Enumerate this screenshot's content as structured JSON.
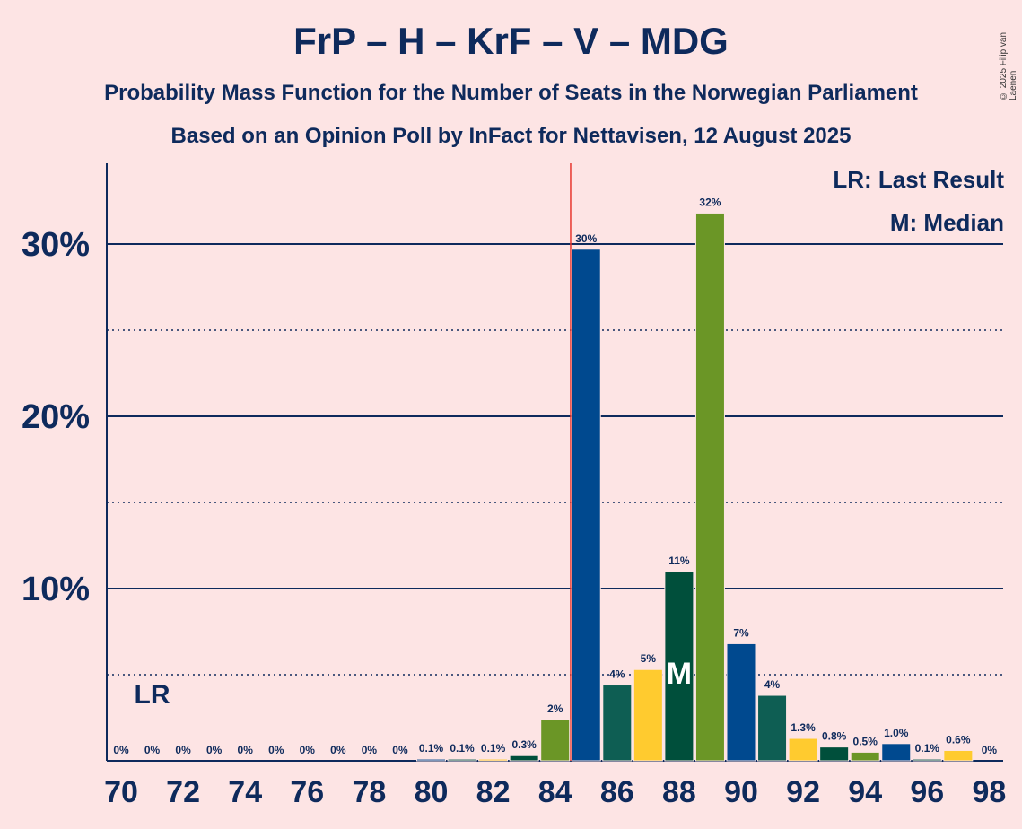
{
  "header": {
    "title": "FrP – H – KrF – V – MDG",
    "subtitle1": "Probability Mass Function for the Number of Seats in the Norwegian Parliament",
    "subtitle2": "Based on an Opinion Poll by InFact for Nettavisen, 12 August 2025",
    "copyright": "© 2025 Filip van Laenen"
  },
  "legend": {
    "lr": "LR: Last Result",
    "median": "M: Median"
  },
  "chart_data": {
    "type": "bar",
    "x": [
      70,
      71,
      72,
      73,
      74,
      75,
      76,
      77,
      78,
      79,
      80,
      81,
      82,
      83,
      84,
      85,
      86,
      87,
      88,
      89,
      90,
      91,
      92,
      93,
      94,
      95,
      96,
      97,
      98
    ],
    "values": [
      0,
      0,
      0,
      0,
      0,
      0,
      0,
      0,
      0,
      0,
      0.1,
      0.1,
      0.1,
      0.3,
      2.4,
      29.7,
      4.4,
      5.3,
      11.0,
      31.8,
      6.8,
      3.8,
      1.3,
      0.8,
      0.5,
      1.0,
      0.1,
      0.6,
      0
    ],
    "labels": [
      "0%",
      "0%",
      "0%",
      "0%",
      "0%",
      "0%",
      "0%",
      "0%",
      "0%",
      "0%",
      "0.1%",
      "0.1%",
      "0.1%",
      "0.3%",
      "2%",
      "30%",
      "4%",
      "5%",
      "11%",
      "32%",
      "7%",
      "4%",
      "1.3%",
      "0.8%",
      "0.5%",
      "1.0%",
      "0.1%",
      "0.6%",
      "0%"
    ],
    "bar_colors": [
      "#00498f",
      "#0e5e53",
      "#ffcb2f",
      "#004f3b",
      "#6b9626"
    ],
    "x_tick_labels": [
      "70",
      "72",
      "74",
      "76",
      "78",
      "80",
      "82",
      "84",
      "86",
      "88",
      "90",
      "92",
      "94",
      "96",
      "98"
    ],
    "y_tick_labels": [
      "10%",
      "20%",
      "30%"
    ],
    "y_ticks": [
      10,
      20,
      30
    ],
    "ylim": [
      0,
      34.5
    ],
    "last_result": 71,
    "last_result_label": "LR",
    "majority_line": 84.5,
    "median": 88,
    "median_label": "M",
    "grid": true,
    "colors": {
      "axis": "#0e2a5c",
      "majority_line": "#e8362e",
      "background": "#fde4e4"
    }
  }
}
